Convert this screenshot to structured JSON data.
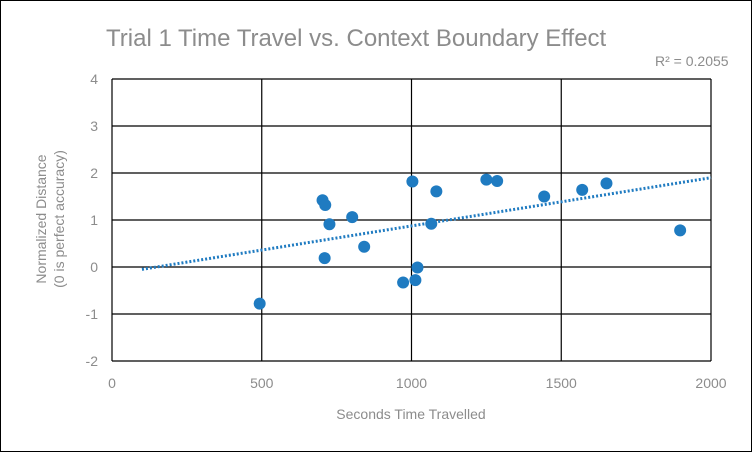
{
  "chart_data": {
    "type": "scatter",
    "title": "Trial 1 Time Travel vs. Context Boundary Effect",
    "xlabel": "Seconds Time Travelled",
    "ylabel_line1": "Normalized Distance",
    "ylabel_line2": "(0 is perfect accuracy)",
    "xlim": [
      0,
      2000
    ],
    "ylim": [
      -2,
      4
    ],
    "x_ticks": [
      0,
      500,
      1000,
      1500,
      2000
    ],
    "y_ticks": [
      -2,
      -1,
      0,
      1,
      2,
      3,
      4
    ],
    "grid": true,
    "trendline": {
      "type": "linear",
      "r_squared_label": "R² = 0.2055",
      "x_range": [
        100,
        2000
      ],
      "start_y": -0.05,
      "end_y": 1.9,
      "color": "#1f7bc1"
    },
    "marker_color": "#1f7bc1",
    "points": [
      {
        "x": 493,
        "y": -0.78
      },
      {
        "x": 703,
        "y": 1.42
      },
      {
        "x": 712,
        "y": 1.32
      },
      {
        "x": 710,
        "y": 0.19
      },
      {
        "x": 726,
        "y": 0.91
      },
      {
        "x": 802,
        "y": 1.06
      },
      {
        "x": 842,
        "y": 0.43
      },
      {
        "x": 972,
        "y": -0.33
      },
      {
        "x": 1003,
        "y": 1.82
      },
      {
        "x": 1013,
        "y": -0.28
      },
      {
        "x": 1020,
        "y": -0.01
      },
      {
        "x": 1066,
        "y": 0.92
      },
      {
        "x": 1083,
        "y": 1.61
      },
      {
        "x": 1250,
        "y": 1.86
      },
      {
        "x": 1286,
        "y": 1.83
      },
      {
        "x": 1443,
        "y": 1.5
      },
      {
        "x": 1570,
        "y": 1.64
      },
      {
        "x": 1651,
        "y": 1.78
      },
      {
        "x": 1897,
        "y": 0.78
      }
    ]
  }
}
